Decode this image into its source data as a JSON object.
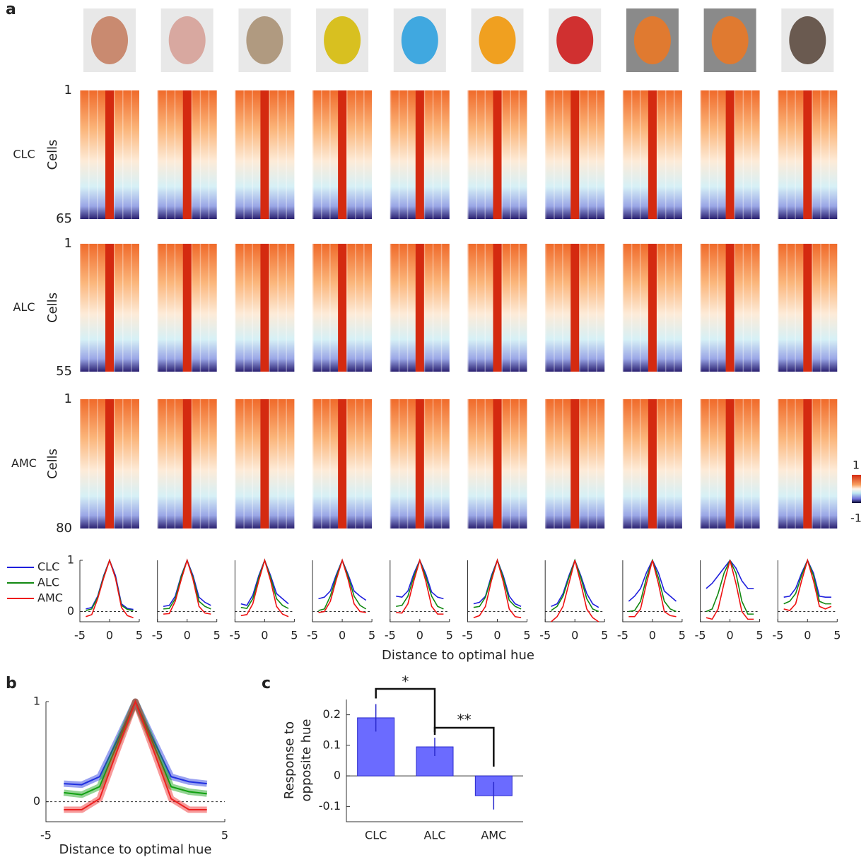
{
  "panel_labels": [
    "a",
    "b",
    "c"
  ],
  "panel_a": {
    "xlabel": "Distance to optimal hue"
  },
  "heatmaps": {
    "rows": [
      {
        "name": "CLC",
        "ylabel": "Cells",
        "ticks": [
          1,
          65
        ]
      },
      {
        "name": "ALC",
        "ylabel": "Cells",
        "ticks": [
          1,
          55
        ]
      },
      {
        "name": "AMC",
        "ylabel": "Cells",
        "ticks": [
          1,
          80
        ]
      }
    ],
    "colorbar": {
      "ticks": [
        1,
        -1
      ]
    }
  },
  "chart_data": [
    {
      "type": "line",
      "x": [
        -4,
        -3,
        -2,
        -1,
        0,
        1,
        2,
        3,
        4
      ],
      "xlim": [
        -5,
        5
      ],
      "ylim": [
        -0.2,
        1
      ],
      "xticks": [
        -5,
        0,
        5
      ],
      "yticks": [
        0,
        1
      ],
      "zero_line": true,
      "series": [
        {
          "name": "CLC",
          "color": "#1f1fdd",
          "values": [
            0.05,
            0.08,
            0.3,
            0.7,
            1,
            0.7,
            0.15,
            0.06,
            0.04
          ]
        },
        {
          "name": "ALC",
          "color": "#118811",
          "values": [
            0.02,
            0.05,
            0.28,
            0.68,
            1,
            0.66,
            0.12,
            0.04,
            0.02
          ]
        },
        {
          "name": "AMC",
          "color": "#ee1111",
          "values": [
            -0.1,
            -0.06,
            0.25,
            0.65,
            1,
            0.65,
            0.08,
            -0.08,
            -0.12
          ]
        }
      ]
    },
    {
      "type": "line",
      "x": [
        -4,
        -3,
        -2,
        -1,
        0,
        1,
        2,
        3,
        4
      ],
      "xlim": [
        -5,
        5
      ],
      "ticks_hidden": true,
      "ylim": [
        -0.2,
        1
      ],
      "xticks": [
        -5,
        0,
        5
      ],
      "zero_line": true,
      "series": [
        {
          "color": "#1f1fdd",
          "values": [
            0.1,
            0.12,
            0.3,
            0.7,
            1,
            0.7,
            0.28,
            0.18,
            0.12
          ]
        },
        {
          "color": "#118811",
          "values": [
            0.05,
            0.06,
            0.25,
            0.68,
            1,
            0.66,
            0.2,
            0.1,
            0.05
          ]
        },
        {
          "color": "#ee1111",
          "values": [
            -0.05,
            -0.04,
            0.2,
            0.62,
            1,
            0.62,
            0.1,
            -0.03,
            -0.05
          ]
        }
      ]
    },
    {
      "type": "line",
      "x": [
        -4,
        -3,
        -2,
        -1,
        0,
        1,
        2,
        3,
        4
      ],
      "xlim": [
        -5,
        5
      ],
      "ylim": [
        -0.2,
        1
      ],
      "xticks": [
        -5,
        0,
        5
      ],
      "zero_line": true,
      "series": [
        {
          "color": "#1f1fdd",
          "values": [
            0.15,
            0.12,
            0.32,
            0.7,
            1,
            0.7,
            0.35,
            0.25,
            0.15
          ]
        },
        {
          "color": "#118811",
          "values": [
            0.08,
            0.06,
            0.25,
            0.66,
            1,
            0.66,
            0.25,
            0.12,
            0.06
          ]
        },
        {
          "color": "#ee1111",
          "values": [
            -0.08,
            -0.06,
            0.15,
            0.6,
            1,
            0.6,
            0.1,
            -0.05,
            -0.1
          ]
        }
      ]
    },
    {
      "type": "line",
      "x": [
        -4,
        -3,
        -2,
        -1,
        0,
        1,
        2,
        3,
        4
      ],
      "xlim": [
        -5,
        5
      ],
      "ylim": [
        -0.2,
        1
      ],
      "xticks": [
        -5,
        0,
        5
      ],
      "zero_line": true,
      "series": [
        {
          "color": "#1f1fdd",
          "values": [
            0.25,
            0.28,
            0.4,
            0.72,
            1,
            0.72,
            0.4,
            0.3,
            0.22
          ]
        },
        {
          "color": "#118811",
          "values": [
            0.02,
            0.05,
            0.3,
            0.68,
            1,
            0.68,
            0.3,
            0.12,
            0.05
          ]
        },
        {
          "color": "#ee1111",
          "values": [
            -0.02,
            0,
            0.2,
            0.62,
            1,
            0.62,
            0.15,
            0,
            -0.02
          ]
        }
      ]
    },
    {
      "type": "line",
      "x": [
        -4,
        -3,
        -2,
        -1,
        0,
        1,
        2,
        3,
        4
      ],
      "xlim": [
        -5,
        5
      ],
      "ylim": [
        -0.2,
        1
      ],
      "xticks": [
        -5,
        0,
        5
      ],
      "zero_line": true,
      "series": [
        {
          "color": "#1f1fdd",
          "values": [
            0.3,
            0.28,
            0.4,
            0.74,
            1,
            0.74,
            0.38,
            0.28,
            0.25
          ]
        },
        {
          "color": "#118811",
          "values": [
            0.1,
            0.12,
            0.3,
            0.68,
            1,
            0.68,
            0.3,
            0.1,
            0.05
          ]
        },
        {
          "color": "#ee1111",
          "values": [
            -0.02,
            -0.03,
            0.15,
            0.6,
            1,
            0.6,
            0.1,
            -0.05,
            -0.05
          ]
        }
      ]
    },
    {
      "type": "line",
      "x": [
        -4,
        -3,
        -2,
        -1,
        0,
        1,
        2,
        3,
        4
      ],
      "xlim": [
        -5,
        5
      ],
      "ylim": [
        -0.2,
        1
      ],
      "xticks": [
        -5,
        0,
        5
      ],
      "zero_line": true,
      "series": [
        {
          "color": "#1f1fdd",
          "values": [
            0.15,
            0.18,
            0.3,
            0.7,
            1,
            0.7,
            0.3,
            0.15,
            0.1
          ]
        },
        {
          "color": "#118811",
          "values": [
            0.08,
            0.1,
            0.28,
            0.66,
            1,
            0.66,
            0.22,
            0.1,
            0.05
          ]
        },
        {
          "color": "#ee1111",
          "values": [
            -0.12,
            -0.08,
            0.1,
            0.6,
            1,
            0.58,
            0.05,
            -0.1,
            -0.12
          ]
        }
      ]
    },
    {
      "type": "line",
      "x": [
        -4,
        -3,
        -2,
        -1,
        0,
        1,
        2,
        3,
        4
      ],
      "xlim": [
        -5,
        5
      ],
      "ylim": [
        -0.2,
        1
      ],
      "xticks": [
        -5,
        0,
        5
      ],
      "zero_line": true,
      "series": [
        {
          "color": "#1f1fdd",
          "values": [
            0.1,
            0.15,
            0.35,
            0.7,
            1,
            0.7,
            0.35,
            0.15,
            0.08
          ]
        },
        {
          "color": "#118811",
          "values": [
            0.02,
            0.1,
            0.3,
            0.66,
            1,
            0.66,
            0.25,
            0.05,
            0
          ]
        },
        {
          "color": "#ee1111",
          "values": [
            -0.2,
            -0.1,
            0.1,
            0.55,
            1,
            0.55,
            0.05,
            -0.12,
            -0.2
          ]
        }
      ]
    },
    {
      "type": "line",
      "x": [
        -4,
        -3,
        -2,
        -1,
        0,
        1,
        2,
        3,
        4
      ],
      "xlim": [
        -5,
        5
      ],
      "ylim": [
        -0.2,
        1
      ],
      "xticks": [
        -5,
        0,
        5
      ],
      "zero_line": true,
      "series": [
        {
          "color": "#1f1fdd",
          "values": [
            0.2,
            0.3,
            0.45,
            0.76,
            1,
            0.76,
            0.4,
            0.3,
            0.2
          ]
        },
        {
          "color": "#118811",
          "values": [
            0,
            0.02,
            0.2,
            0.66,
            1,
            0.66,
            0.2,
            0.05,
            0
          ]
        },
        {
          "color": "#ee1111",
          "values": [
            -0.1,
            -0.1,
            0.05,
            0.55,
            1,
            0.55,
            0,
            -0.08,
            -0.1
          ]
        }
      ]
    },
    {
      "type": "line",
      "x": [
        -4,
        -3,
        -2,
        -1,
        0,
        1,
        2,
        3,
        4
      ],
      "xlim": [
        -5,
        5
      ],
      "ylim": [
        -0.2,
        1
      ],
      "xticks": [
        -5,
        0,
        5
      ],
      "zero_line": true,
      "series": [
        {
          "color": "#1f1fdd",
          "values": [
            0.45,
            0.55,
            0.7,
            0.85,
            1,
            0.85,
            0.6,
            0.45,
            0.45
          ]
        },
        {
          "color": "#118811",
          "values": [
            0,
            0.05,
            0.35,
            0.75,
            1,
            0.75,
            0.2,
            -0.05,
            -0.05
          ]
        },
        {
          "color": "#ee1111",
          "values": [
            -0.12,
            -0.15,
            0.05,
            0.55,
            1,
            0.55,
            0,
            -0.15,
            -0.15
          ]
        }
      ]
    },
    {
      "type": "line",
      "x": [
        -4,
        -3,
        -2,
        -1,
        0,
        1,
        2,
        3,
        4
      ],
      "xlim": [
        -5,
        5
      ],
      "ylim": [
        -0.2,
        1
      ],
      "xticks": [
        -5,
        0,
        5
      ],
      "zero_line": true,
      "series": [
        {
          "color": "#1f1fdd",
          "values": [
            0.28,
            0.3,
            0.45,
            0.75,
            1,
            0.75,
            0.3,
            0.28,
            0.28
          ]
        },
        {
          "color": "#118811",
          "values": [
            0.15,
            0.2,
            0.35,
            0.7,
            1,
            0.7,
            0.2,
            0.15,
            0.15
          ]
        },
        {
          "color": "#ee1111",
          "values": [
            0.05,
            0.02,
            0.15,
            0.6,
            1,
            0.6,
            0.1,
            0.05,
            0.1
          ]
        }
      ]
    },
    {
      "type": "line",
      "x": [
        -4,
        -3,
        -2,
        -1,
        0,
        1,
        2,
        3,
        4
      ],
      "xlim": [
        -5,
        5
      ],
      "ylim": [
        -0.2,
        1
      ],
      "xticks": [
        -5,
        5
      ],
      "yticks": [
        0,
        1
      ],
      "zero_line": true,
      "xlabel": "Distance to optimal hue",
      "series": [
        {
          "color": "#2030e0",
          "values": [
            0.18,
            0.17,
            0.25,
            0.62,
            1,
            0.62,
            0.25,
            0.2,
            0.18
          ]
        },
        {
          "color": "#10a010",
          "values": [
            0.09,
            0.07,
            0.15,
            0.58,
            1,
            0.58,
            0.15,
            0.1,
            0.08
          ]
        },
        {
          "color": "#ee2020",
          "values": [
            -0.08,
            -0.08,
            0.03,
            0.52,
            1,
            0.52,
            0.03,
            -0.08,
            -0.08
          ]
        }
      ]
    },
    {
      "type": "bar",
      "categories": [
        "CLC",
        "ALC",
        "AMC"
      ],
      "values": [
        0.19,
        0.095,
        -0.065
      ],
      "errors": [
        0.045,
        0.03,
        0.045
      ],
      "color": "#6b6bff",
      "ylim": [
        -0.15,
        0.25
      ],
      "yticks": [
        -0.1,
        0,
        0.1,
        0.2
      ],
      "ylabel": [
        "Response to",
        "opposite hue"
      ],
      "annotations": [
        "*",
        "**"
      ]
    }
  ]
}
